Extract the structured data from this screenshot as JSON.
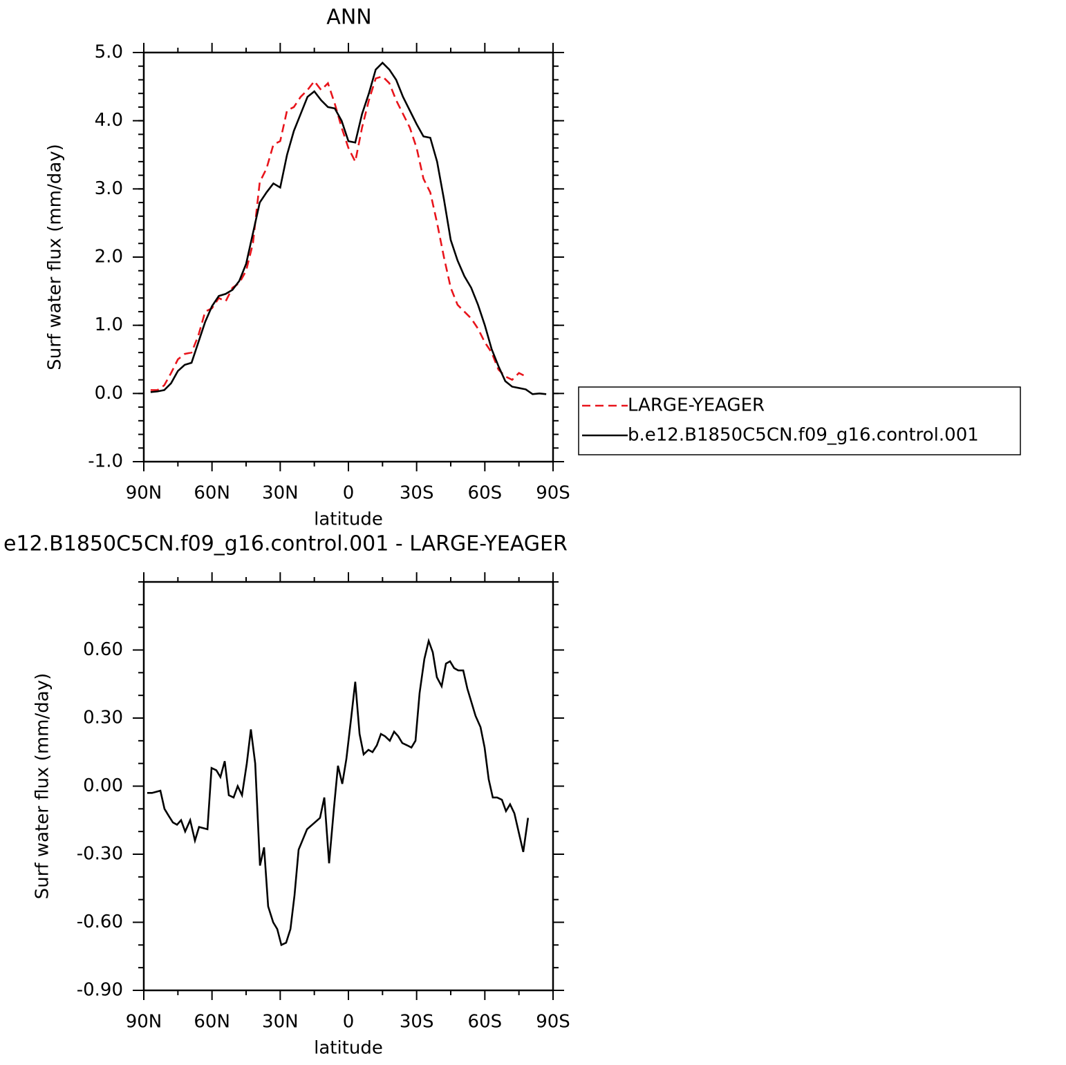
{
  "chart_data": [
    {
      "type": "line",
      "title": "ANN",
      "xlabel": "latitude",
      "ylabel": "Surf water flux (mm/day)",
      "x": [
        87,
        84,
        81,
        78,
        75,
        72,
        69,
        66,
        63,
        60,
        57,
        54,
        51,
        48,
        45,
        42,
        39,
        36,
        33,
        30,
        27,
        24,
        21,
        18,
        15,
        12,
        9,
        6,
        3,
        0,
        -3,
        -6,
        -9,
        -12,
        -15,
        -18,
        -21,
        -24,
        -27,
        -30,
        -33,
        -36,
        -39,
        -42,
        -45,
        -48,
        -51,
        -54,
        -57,
        -60,
        -63,
        -66,
        -69,
        -72,
        -75,
        -78,
        -81,
        -84,
        -87
      ],
      "xlim": [
        90,
        -90
      ],
      "xticks": [
        {
          "value": 90,
          "label": "90N"
        },
        {
          "value": 60,
          "label": "60N"
        },
        {
          "value": 30,
          "label": "30N"
        },
        0,
        {
          "value": -30,
          "label": "30S"
        },
        {
          "value": -60,
          "label": "60S"
        },
        {
          "value": -90,
          "label": "90S"
        }
      ],
      "ylim": [
        -1,
        5
      ],
      "yticks": [
        {
          "value": -1,
          "label": "-1.0"
        },
        {
          "value": 0,
          "label": "0.0"
        },
        {
          "value": 1,
          "label": "1.0"
        },
        {
          "value": 2,
          "label": "2.0"
        },
        {
          "value": 3,
          "label": "3.0"
        },
        {
          "value": 4,
          "label": "4.0"
        },
        {
          "value": 5,
          "label": "5.0"
        }
      ],
      "legend": "right",
      "series": [
        {
          "name": "LARGE-YEAGER",
          "color": "#e8141b",
          "linestyle": "dashed",
          "values": [
            0.05,
            0.05,
            0.12,
            0.3,
            0.5,
            0.58,
            0.6,
            0.85,
            1.2,
            1.25,
            1.4,
            1.35,
            1.55,
            1.62,
            1.8,
            2.2,
            3.1,
            3.3,
            3.65,
            3.7,
            4.15,
            4.2,
            4.35,
            4.45,
            4.58,
            4.45,
            4.55,
            4.25,
            3.9,
            3.6,
            3.4,
            3.9,
            4.3,
            4.62,
            4.65,
            4.55,
            4.3,
            4.1,
            3.9,
            3.6,
            3.15,
            2.95,
            2.5,
            2.0,
            1.55,
            1.3,
            1.2,
            1.1,
            0.95,
            0.75,
            0.6,
            0.35,
            0.25,
            0.2,
            0.3,
            0.25,
            null,
            null,
            null
          ]
        },
        {
          "name": "b.e12.B1850C5CN.f09_g16.control.001",
          "color": "#000000",
          "linestyle": "solid",
          "values": [
            0.02,
            0.03,
            0.05,
            0.15,
            0.33,
            0.42,
            0.45,
            0.75,
            1.05,
            1.28,
            1.43,
            1.46,
            1.52,
            1.65,
            1.9,
            2.35,
            2.8,
            2.95,
            3.08,
            3.02,
            3.5,
            3.85,
            4.1,
            4.35,
            4.43,
            4.3,
            4.2,
            4.18,
            4.0,
            3.7,
            3.68,
            4.1,
            4.4,
            4.75,
            4.85,
            4.75,
            4.6,
            4.35,
            4.15,
            3.95,
            3.77,
            3.75,
            3.4,
            2.85,
            2.25,
            1.95,
            1.72,
            1.55,
            1.3,
            1.0,
            0.65,
            0.4,
            0.18,
            0.1,
            0.08,
            0.06,
            -0.01,
            0.0,
            -0.01
          ]
        }
      ]
    },
    {
      "type": "line",
      "title": "e12.B1850C5CN.f09_g16.control.001 - LARGE-YEAGER",
      "xlabel": "latitude",
      "ylabel": "Surf water flux (mm/day)",
      "x": [
        88.5,
        86.4,
        82.7,
        80.9,
        79.1,
        77.2,
        75.4,
        73.6,
        71.8,
        69.6,
        67.5,
        65.7,
        62.0,
        60.2,
        58.1,
        56.3,
        54.4,
        52.6,
        50.5,
        48.7,
        46.8,
        44.7,
        42.9,
        41.0,
        38.9,
        37.1,
        35.3,
        33.1,
        31.3,
        29.5,
        27.4,
        25.5,
        23.7,
        21.9,
        18.2,
        12.5,
        10.6,
        8.5,
        6.4,
        4.6,
        2.7,
        0.9,
        -1.2,
        -3.0,
        -4.9,
        -6.7,
        -8.8,
        -10.6,
        -12.5,
        -14.3,
        -16.1,
        -18.2,
        -20.1,
        -21.9,
        -23.7,
        -25.8,
        -27.7,
        -29.5,
        -31.3,
        -33.4,
        -35.3,
        -37.1,
        -38.9,
        -41.0,
        -42.9,
        -44.7,
        -46.5,
        -48.3,
        -50.5,
        -52.3,
        -55.9,
        -58.1,
        -59.9,
        -61.7,
        -63.5,
        -65.4,
        -67.5,
        -69.3,
        -71.1,
        -73.0,
        -76.9,
        -79.0
      ],
      "xlim": [
        90,
        -90
      ],
      "xticks": [
        {
          "value": 90,
          "label": "90N"
        },
        {
          "value": 60,
          "label": "60N"
        },
        {
          "value": 30,
          "label": "30N"
        },
        0,
        {
          "value": -30,
          "label": "30S"
        },
        {
          "value": -60,
          "label": "60S"
        },
        {
          "value": -90,
          "label": "90S"
        }
      ],
      "ylim": [
        -0.9,
        0.9
      ],
      "yticks": [
        {
          "value": -0.9,
          "label": "-0.90"
        },
        {
          "value": -0.6,
          "label": "-0.60"
        },
        {
          "value": -0.3,
          "label": "-0.30"
        },
        {
          "value": 0,
          "label": "0.00"
        },
        {
          "value": 0.3,
          "label": "0.30"
        },
        {
          "value": 0.6,
          "label": "0.60"
        }
      ],
      "series": [
        {
          "color": "#000000",
          "linestyle": "solid",
          "values": [
            -0.03,
            -0.03,
            -0.02,
            -0.1,
            -0.13,
            -0.16,
            -0.17,
            -0.15,
            -0.2,
            -0.15,
            -0.24,
            -0.18,
            -0.19,
            0.08,
            0.07,
            0.04,
            0.11,
            -0.04,
            -0.05,
            0.0,
            -0.04,
            0.1,
            0.25,
            0.1,
            -0.35,
            -0.27,
            -0.53,
            -0.6,
            -0.63,
            -0.7,
            -0.69,
            -0.63,
            -0.48,
            -0.28,
            -0.19,
            -0.14,
            -0.05,
            -0.34,
            -0.1,
            0.09,
            0.01,
            0.12,
            0.3,
            0.46,
            0.23,
            0.14,
            0.16,
            0.15,
            0.18,
            0.23,
            0.22,
            0.2,
            0.24,
            0.22,
            0.19,
            0.18,
            0.17,
            0.2,
            0.41,
            0.56,
            0.64,
            0.59,
            0.48,
            0.44,
            0.54,
            0.55,
            0.52,
            0.51,
            0.51,
            0.43,
            0.31,
            0.26,
            0.17,
            0.03,
            -0.05,
            -0.05,
            -0.06,
            -0.11,
            -0.08,
            -0.12,
            -0.29,
            -0.14
          ]
        }
      ]
    }
  ]
}
